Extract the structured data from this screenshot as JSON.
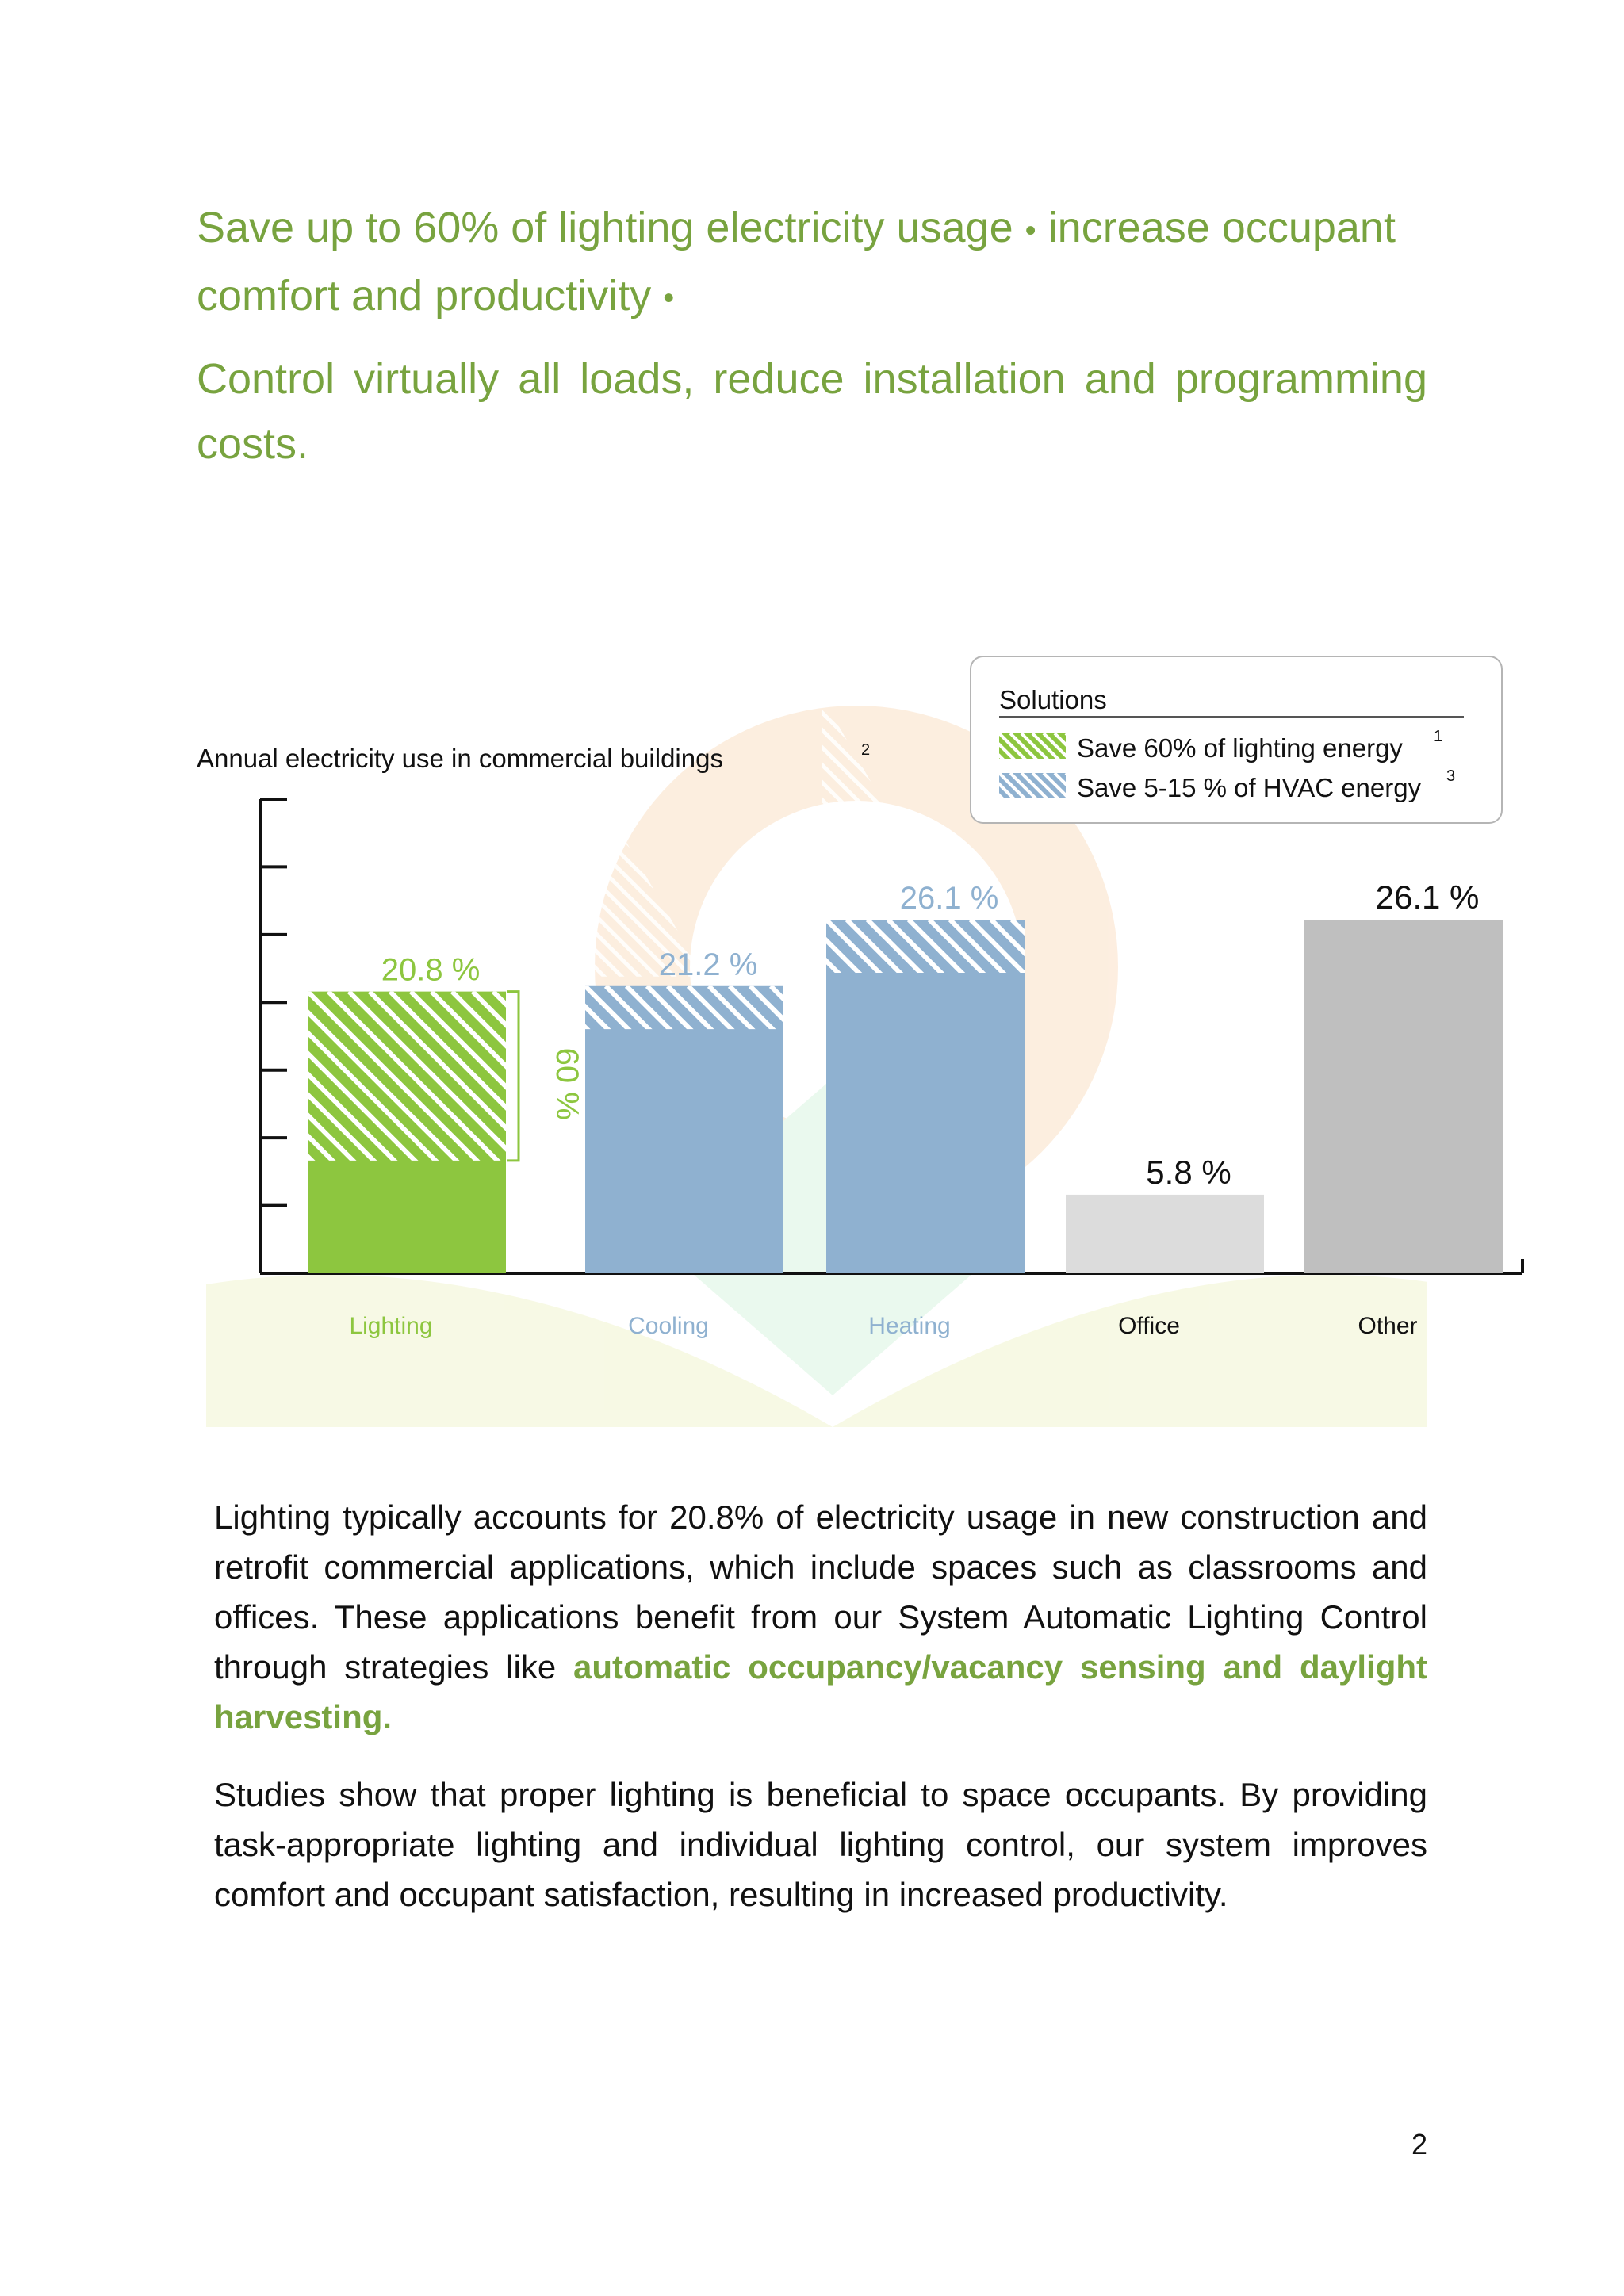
{
  "header": {
    "line1_a": "Save up to 60% of lighting electricity usage",
    "bullet": "•",
    "line1_b": "increase occupant comfort and productivity",
    "line2": "Control virtually all loads, reduce installation and programming costs."
  },
  "chart_data": {
    "type": "bar",
    "title": "Annual electricity use in commercial buildings",
    "title_footnote": "2",
    "categories": [
      "Lighting",
      "Cooling",
      "Heating",
      "Office",
      "Other"
    ],
    "values": [
      20.8,
      21.2,
      26.1,
      5.8,
      26.1
    ],
    "value_labels": [
      "20.8 %",
      "21.2 %",
      "26.1 %",
      "5.8 %",
      "26.1 %"
    ],
    "savings_fraction": [
      0.6,
      0.15,
      0.15,
      0,
      0
    ],
    "bar_colors": [
      "#8dc63f",
      "#8fb1d0",
      "#8fb1d0",
      "#dcdcdc",
      "#bfbfbf"
    ],
    "label_colors": [
      "#8dc63f",
      "#8fb1d0",
      "#8fb1d0",
      "#111111",
      "#111111"
    ],
    "savings_bracket_label": "60 %",
    "ylim": [
      0,
      35
    ],
    "legend": {
      "title": "Solutions",
      "position": "top-right",
      "items": [
        {
          "text": "Save  60%  of lighting energy",
          "footnote": "1",
          "color": "#8dc63f"
        },
        {
          "text": "Save  5-15 %  of HVAC energy",
          "footnote": "3",
          "color": "#8fb1d0"
        }
      ]
    }
  },
  "body": {
    "p1_plain": "Lighting typically accounts for 20.8% of electricity usage in new construction and retrofit commercial applications, which include spaces such as classrooms and offices. These applications benefit from our System Automatic Lighting Control through strategies like ",
    "p1_emphasis": "automatic occupancy/vacancy sensing and daylight harvesting.",
    "p2": "Studies show that proper lighting is beneficial to space occupants. By providing task-appropriate lighting and individual lighting control, our system improves comfort and occupant satisfaction, resulting in increased productivity."
  },
  "footer": {
    "page_number": "2"
  }
}
